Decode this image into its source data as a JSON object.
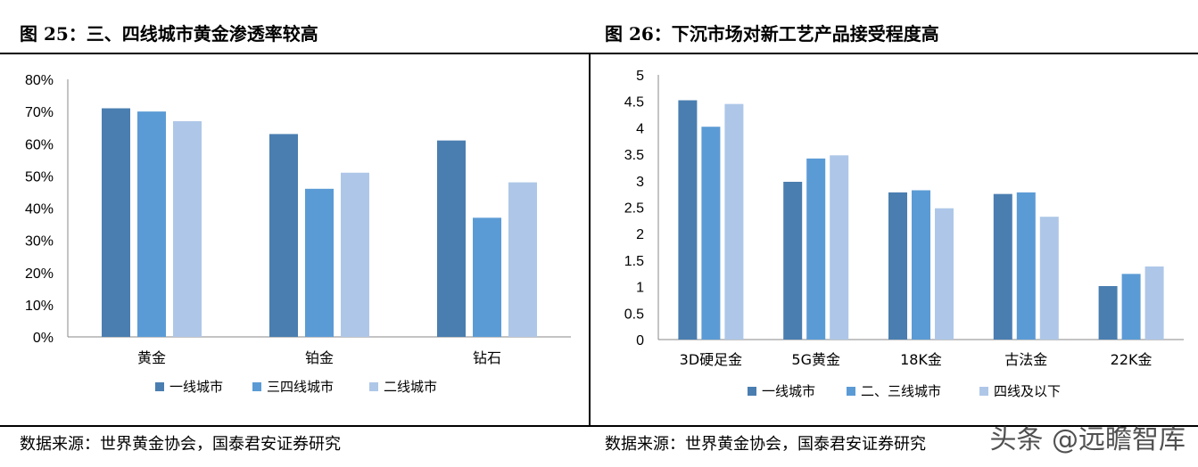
{
  "figures": [
    {
      "title": "图 25：三、四线城市黄金渗透率较高",
      "source": "数据来源：世界黄金协会，国泰君安证券研究"
    },
    {
      "title": "图 26：下沉市场对新工艺产品接受程度高",
      "source": "数据来源：世界黄金协会，国泰君安证券研究"
    }
  ],
  "watermark": "头条 @远瞻智库",
  "colors": {
    "series1": "#4a7eb0",
    "series2": "#5b9bd5",
    "series3": "#aec7e8",
    "axis": "#888888"
  },
  "chart_data": [
    {
      "type": "bar",
      "categories": [
        "黄金",
        "铂金",
        "钻石"
      ],
      "series": [
        {
          "name": "一线城市",
          "values": [
            71,
            63,
            61
          ]
        },
        {
          "name": "三四线城市",
          "values": [
            70,
            46,
            37
          ]
        },
        {
          "name": "二线城市",
          "values": [
            67,
            51,
            48
          ]
        }
      ],
      "ylim": [
        0,
        80
      ],
      "yticks": [
        "0%",
        "10%",
        "20%",
        "30%",
        "40%",
        "50%",
        "60%",
        "70%",
        "80%"
      ],
      "legend": "bottom"
    },
    {
      "type": "bar",
      "categories": [
        "3D硬足金",
        "5G黄金",
        "18K金",
        "古法金",
        "22K金"
      ],
      "series": [
        {
          "name": "一线城市",
          "values": [
            4.52,
            2.98,
            2.78,
            2.75,
            1.01
          ]
        },
        {
          "name": "二、三线城市",
          "values": [
            4.02,
            3.42,
            2.82,
            2.78,
            1.24
          ]
        },
        {
          "name": "四线及以下",
          "values": [
            4.45,
            3.48,
            2.48,
            2.32,
            1.38
          ]
        }
      ],
      "ylim": [
        0,
        5
      ],
      "yticks": [
        "0",
        "0.5",
        "1",
        "1.5",
        "2",
        "2.5",
        "3",
        "3.5",
        "4",
        "4.5",
        "5"
      ],
      "legend": "bottom"
    }
  ]
}
